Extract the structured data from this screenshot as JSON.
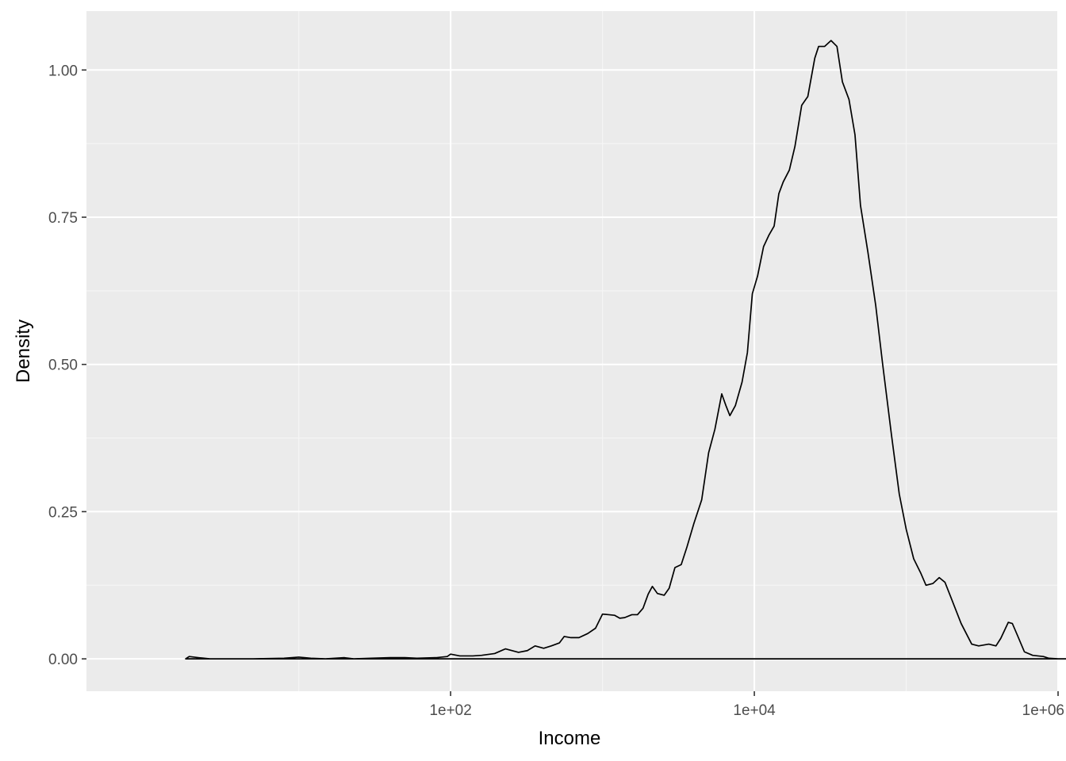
{
  "chart_data": {
    "type": "area",
    "title": "",
    "xlabel": "Income",
    "ylabel": "Density",
    "x_scale": "log10",
    "xlim": [
      0.4,
      1000000
    ],
    "ylim": [
      -0.055,
      1.1
    ],
    "x_ticks": [
      {
        "value": 100,
        "label": "1e+02"
      },
      {
        "value": 10000,
        "label": "1e+04"
      },
      {
        "value": 1000000,
        "label": "1e+06"
      }
    ],
    "x_minor_ticks": [
      10,
      1000,
      100000
    ],
    "y_ticks": [
      {
        "value": 0,
        "label": "0.00"
      },
      {
        "value": 0.25,
        "label": "0.25"
      },
      {
        "value": 0.5,
        "label": "0.50"
      },
      {
        "value": 0.75,
        "label": "0.75"
      },
      {
        "value": 1,
        "label": "1.00"
      }
    ],
    "y_minor_ticks": [
      0.125,
      0.375,
      0.625,
      0.875
    ],
    "grid": true,
    "legend": "none",
    "colors": {
      "panel_background": "#EBEBEB",
      "grid_major": "#FFFFFF",
      "grid_minor": "#F5F5F5",
      "line": "#000000",
      "tick_text": "#4D4D4D"
    },
    "series": [
      {
        "points": [
          [
            1.8,
            0.0
          ],
          [
            1.9,
            0.004
          ],
          [
            2.2,
            0.002
          ],
          [
            2.6,
            0.0
          ],
          [
            5,
            0.0
          ],
          [
            8,
            0.001
          ],
          [
            10,
            0.003
          ],
          [
            12,
            0.001
          ],
          [
            15,
            0.0
          ],
          [
            20,
            0.002
          ],
          [
            23,
            0.0
          ],
          [
            30,
            0.001
          ],
          [
            40,
            0.002
          ],
          [
            50,
            0.002
          ],
          [
            60,
            0.001
          ],
          [
            80,
            0.002
          ],
          [
            95,
            0.004
          ],
          [
            100,
            0.008
          ],
          [
            115,
            0.005
          ],
          [
            140,
            0.005
          ],
          [
            160,
            0.006
          ],
          [
            195,
            0.009
          ],
          [
            230,
            0.017
          ],
          [
            280,
            0.011
          ],
          [
            320,
            0.014
          ],
          [
            360,
            0.022
          ],
          [
            410,
            0.018
          ],
          [
            460,
            0.022
          ],
          [
            520,
            0.027
          ],
          [
            560,
            0.038
          ],
          [
            620,
            0.036
          ],
          [
            700,
            0.036
          ],
          [
            800,
            0.043
          ],
          [
            900,
            0.052
          ],
          [
            1000,
            0.076
          ],
          [
            1100,
            0.075
          ],
          [
            1200,
            0.074
          ],
          [
            1300,
            0.069
          ],
          [
            1400,
            0.07
          ],
          [
            1560,
            0.075
          ],
          [
            1700,
            0.075
          ],
          [
            1850,
            0.086
          ],
          [
            2000,
            0.11
          ],
          [
            2130,
            0.123
          ],
          [
            2300,
            0.111
          ],
          [
            2550,
            0.108
          ],
          [
            2750,
            0.12
          ],
          [
            3000,
            0.155
          ],
          [
            3300,
            0.16
          ],
          [
            3600,
            0.19
          ],
          [
            4000,
            0.23
          ],
          [
            4500,
            0.27
          ],
          [
            5000,
            0.35
          ],
          [
            5500,
            0.39
          ],
          [
            6100,
            0.45
          ],
          [
            6500,
            0.43
          ],
          [
            6900,
            0.413
          ],
          [
            7500,
            0.43
          ],
          [
            8300,
            0.47
          ],
          [
            9000,
            0.52
          ],
          [
            9700,
            0.62
          ],
          [
            10500,
            0.65
          ],
          [
            11500,
            0.7
          ],
          [
            12500,
            0.72
          ],
          [
            13500,
            0.735
          ],
          [
            14500,
            0.79
          ],
          [
            15500,
            0.81
          ],
          [
            17000,
            0.83
          ],
          [
            18500,
            0.87
          ],
          [
            20500,
            0.94
          ],
          [
            22500,
            0.955
          ],
          [
            25000,
            1.02
          ],
          [
            26500,
            1.04
          ],
          [
            29000,
            1.04
          ],
          [
            32000,
            1.05
          ],
          [
            35000,
            1.04
          ],
          [
            38000,
            0.98
          ],
          [
            42000,
            0.95
          ],
          [
            46000,
            0.89
          ],
          [
            50000,
            0.77
          ],
          [
            56000,
            0.69
          ],
          [
            63000,
            0.6
          ],
          [
            70000,
            0.5
          ],
          [
            80000,
            0.38
          ],
          [
            90000,
            0.28
          ],
          [
            100000,
            0.22
          ],
          [
            112000,
            0.17
          ],
          [
            125000,
            0.145
          ],
          [
            135000,
            0.125
          ],
          [
            150000,
            0.128
          ],
          [
            165000,
            0.138
          ],
          [
            180000,
            0.13
          ],
          [
            200000,
            0.1
          ],
          [
            230000,
            0.06
          ],
          [
            270000,
            0.025
          ],
          [
            300000,
            0.022
          ],
          [
            350000,
            0.025
          ],
          [
            390000,
            0.022
          ],
          [
            420000,
            0.035
          ],
          [
            470000,
            0.062
          ],
          [
            500000,
            0.06
          ],
          [
            540000,
            0.04
          ],
          [
            600000,
            0.012
          ],
          [
            680000,
            0.006
          ],
          [
            800000,
            0.004
          ],
          [
            870000,
            0.001
          ],
          [
            1000000,
            0.0
          ],
          [
            1160000,
            0.0
          ]
        ]
      }
    ]
  }
}
